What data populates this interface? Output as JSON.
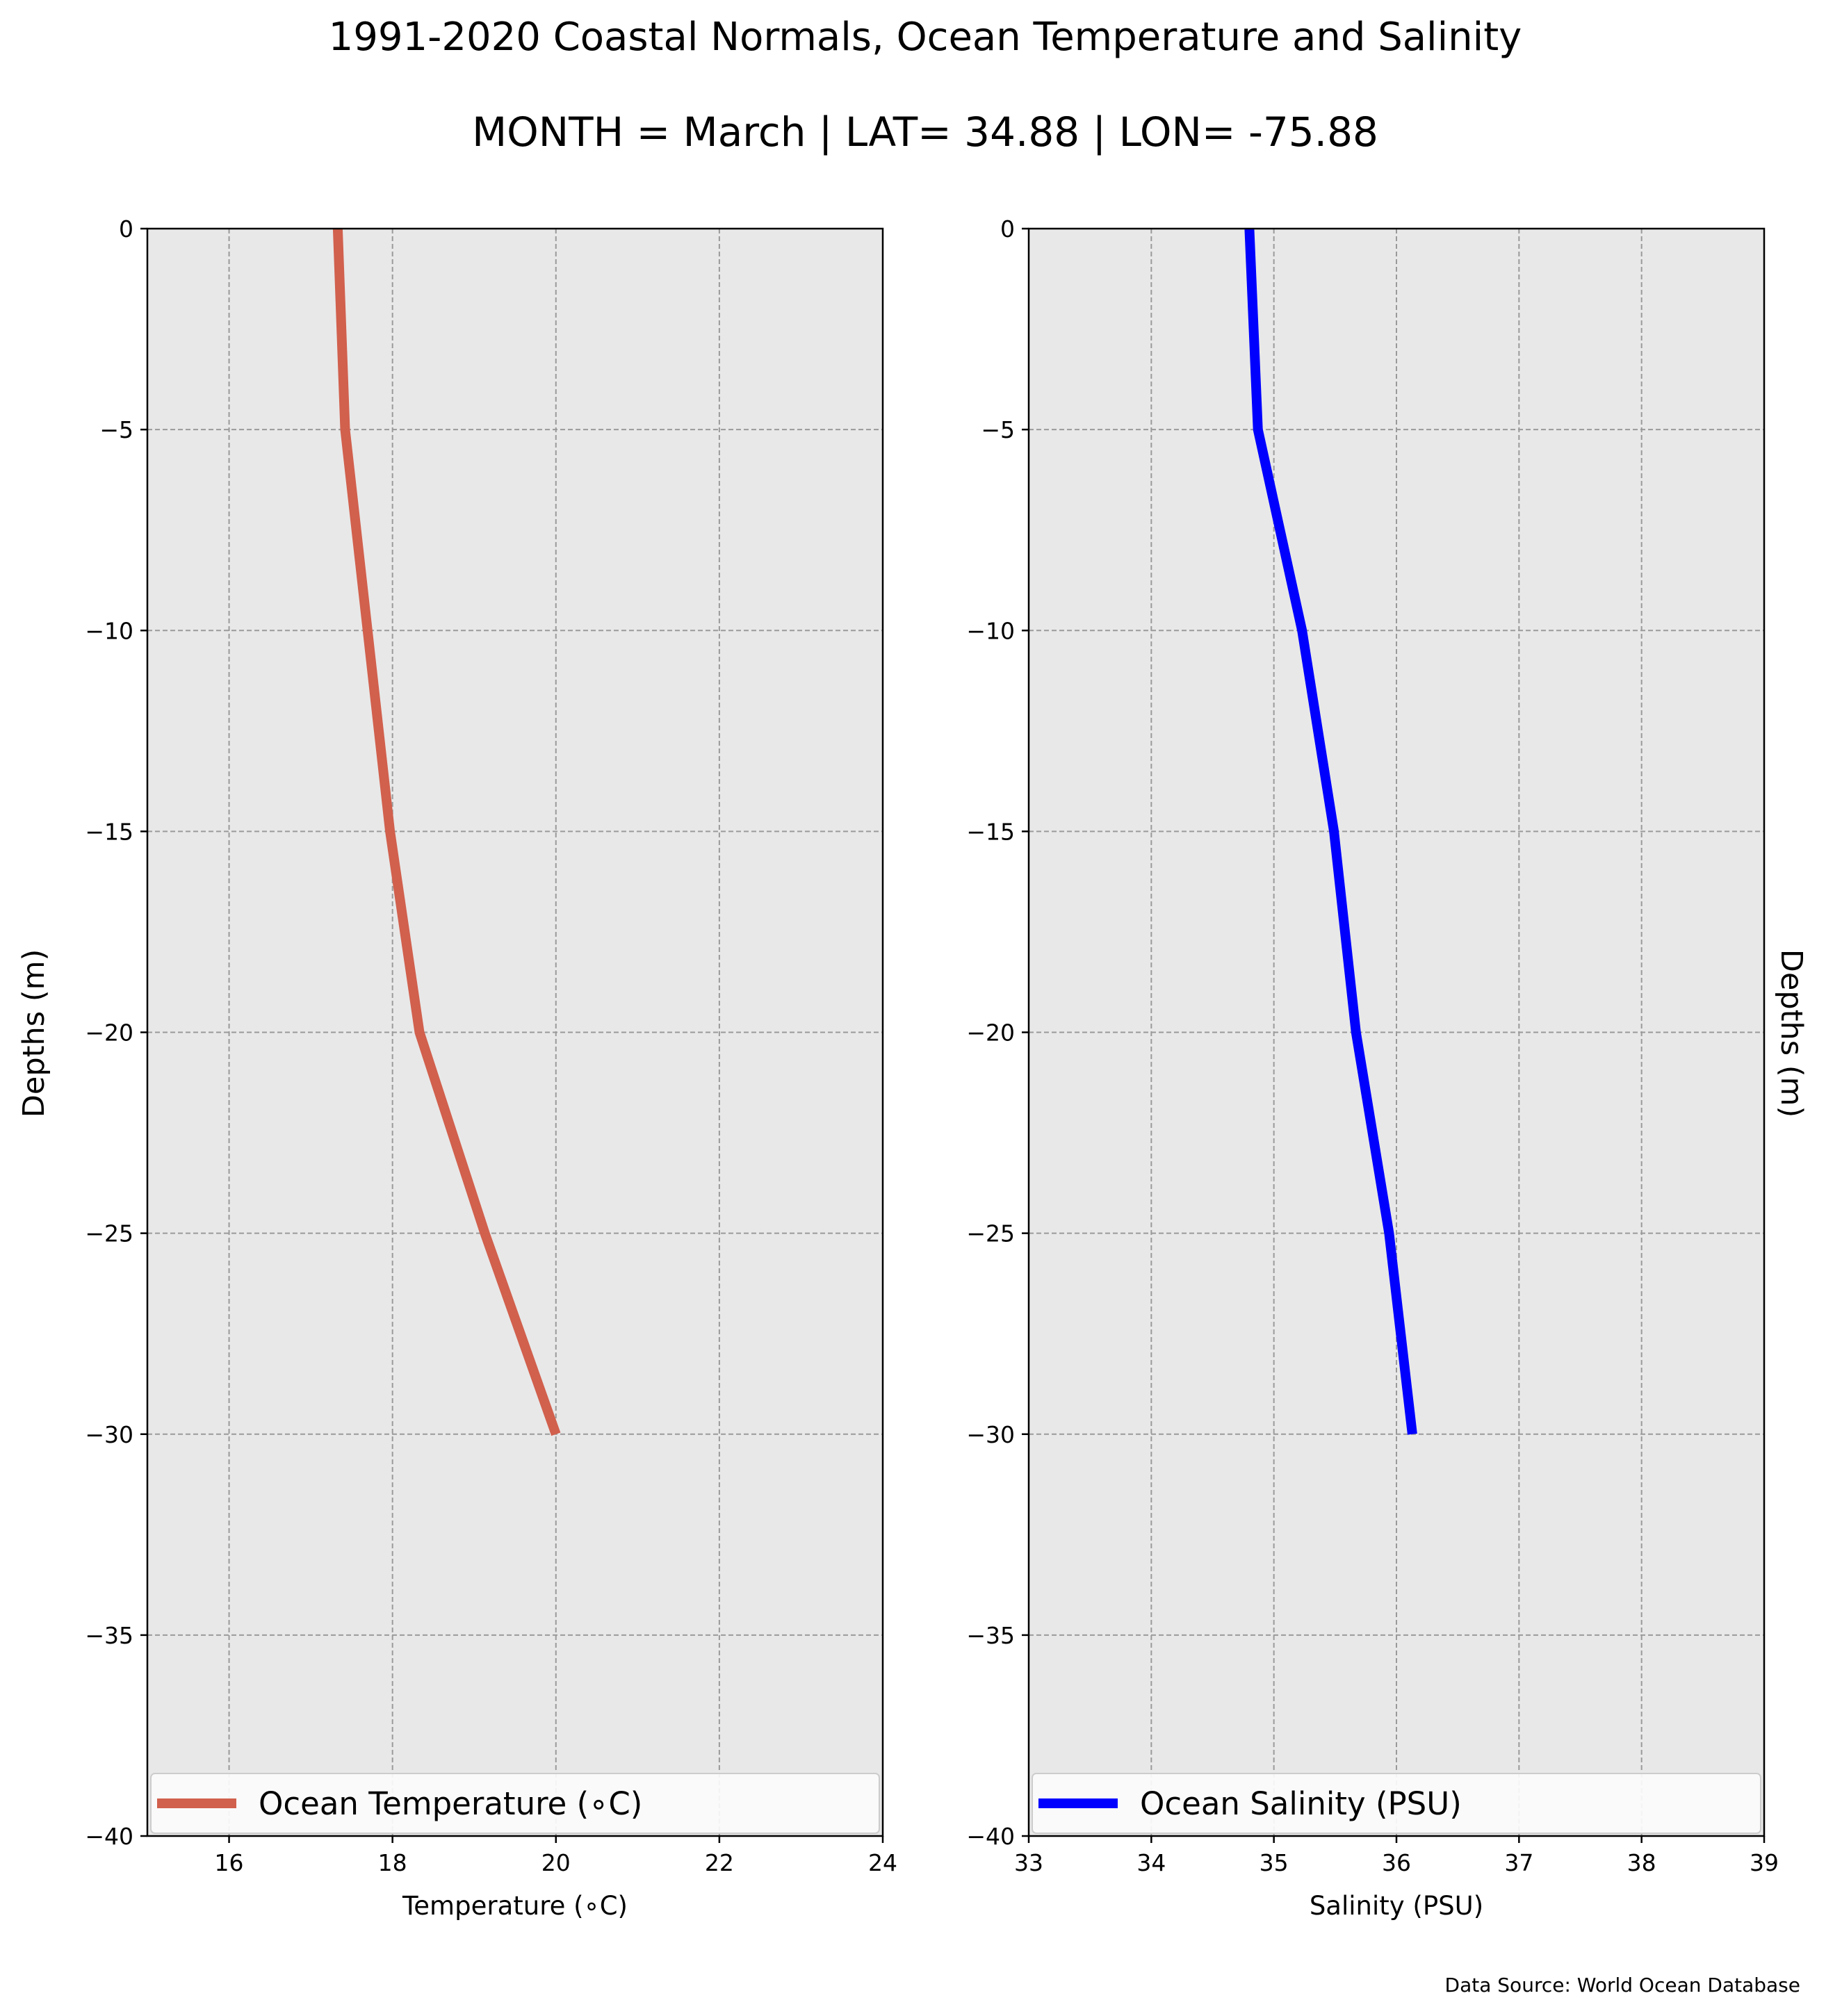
{
  "title": "1991-2020 Coastal Normals, Ocean Temperature and Salinity",
  "subtitle": "MONTH = March | LAT= 34.88 | LON= -75.88",
  "source_note": "Data Source: World Ocean Database",
  "chart_data": [
    {
      "type": "line",
      "xlabel": "Temperature ($^\\circ$C)",
      "xlabel_display": "Temperature (∘C)",
      "ylabel": "Depths (m)",
      "xlim": [
        15,
        24
      ],
      "ylim": [
        -40,
        0
      ],
      "xticks": [
        16,
        18,
        20,
        22,
        24
      ],
      "yticks": [
        0,
        -5,
        -10,
        -15,
        -20,
        -25,
        -30,
        -35,
        -40
      ],
      "grid": true,
      "legend_position": "lower center",
      "series": [
        {
          "name": "Ocean Temperature (∘C)",
          "color": "#d1604d",
          "x": [
            17.33,
            17.42,
            17.97,
            18.33,
            19.13,
            20.0
          ],
          "y": [
            0,
            -5,
            -15,
            -20,
            -25,
            -30
          ]
        }
      ]
    },
    {
      "type": "line",
      "xlabel": "Salinity (PSU)",
      "xlabel_display": "Salinity (PSU)",
      "ylabel": "Depths (m)",
      "xlim": [
        33,
        39
      ],
      "ylim": [
        -40,
        0
      ],
      "xticks": [
        33,
        34,
        35,
        36,
        37,
        38,
        39
      ],
      "yticks": [
        0,
        -5,
        -10,
        -15,
        -20,
        -25,
        -30,
        -35,
        -40
      ],
      "grid": true,
      "legend_position": "lower center",
      "series": [
        {
          "name": "Ocean Salinity (PSU)",
          "color": "#0000ff",
          "x": [
            34.8,
            34.87,
            35.23,
            35.49,
            35.67,
            35.94,
            36.13
          ],
          "y": [
            0,
            -5,
            -10,
            -15,
            -20,
            -25,
            -30
          ]
        }
      ]
    }
  ],
  "colors": {
    "axes_background": "#e8e8e8",
    "grid": "#9a9a9a"
  }
}
